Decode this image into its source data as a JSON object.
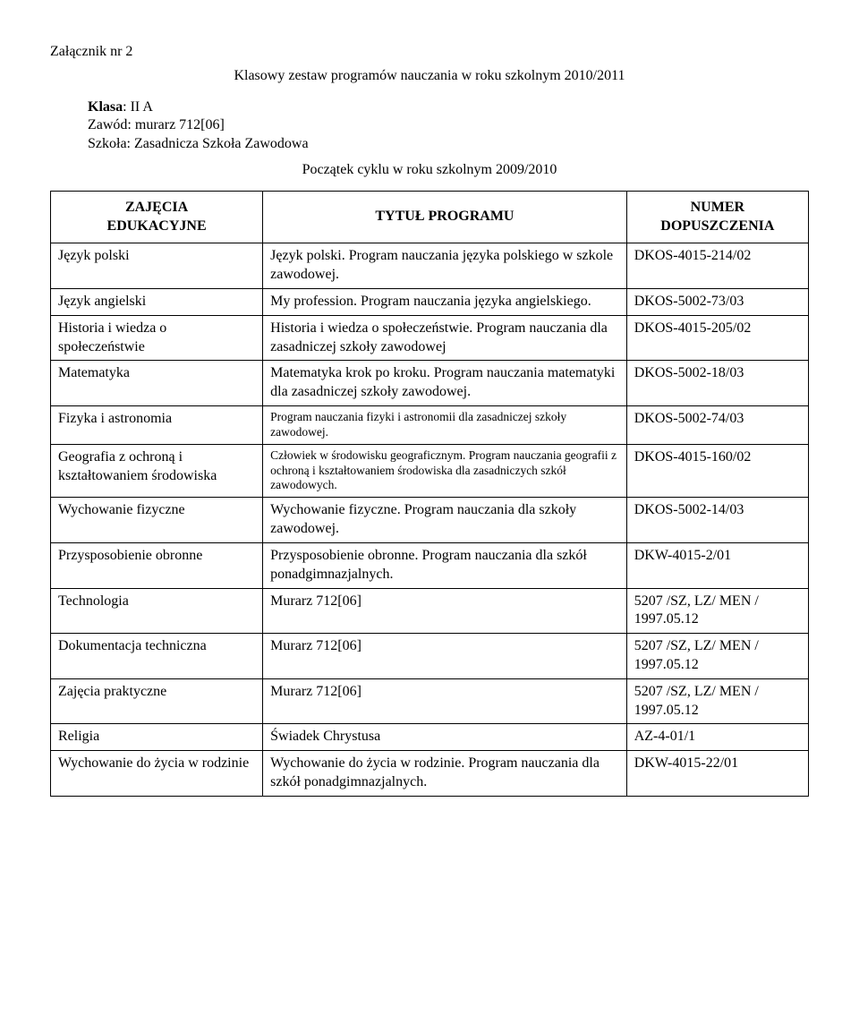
{
  "header": {
    "attachment": "Załącznik nr 2",
    "title": "Klasowy zestaw programów nauczania w roku szkolnym 2010/2011",
    "class_line": "Klasa: II A",
    "profession_line": "Zawód: murarz 712[06]",
    "school_line": "Szkoła: Zasadnicza Szkoła Zawodowa",
    "cycle_start": "Początek cyklu w roku szkolnym 2009/2010"
  },
  "table": {
    "columns": {
      "subject_l1": "ZAJĘCIA",
      "subject_l2": "EDUKACYJNE",
      "program": "TYTUŁ PROGRAMU",
      "number_l1": "NUMER",
      "number_l2": "DOPUSZCZENIA"
    },
    "rows": [
      {
        "subject": "Język polski",
        "program": "Język polski. Program nauczania języka polskiego w szkole zawodowej.",
        "number": "DKOS-4015-214/02",
        "small": false
      },
      {
        "subject": "Język angielski",
        "program": "My profession. Program nauczania języka angielskiego.",
        "number": "DKOS-5002-73/03",
        "small": false
      },
      {
        "subject": "Historia i wiedza o społeczeństwie",
        "program": "Historia i wiedza o społeczeństwie. Program nauczania dla zasadniczej szkoły zawodowej",
        "number": "DKOS-4015-205/02",
        "small": false
      },
      {
        "subject": "Matematyka",
        "program": "Matematyka krok po kroku. Program nauczania matematyki dla zasadniczej szkoły zawodowej.",
        "number": "DKOS-5002-18/03",
        "small": false
      },
      {
        "subject": "Fizyka i astronomia",
        "program": "Program nauczania fizyki i astronomii dla zasadniczej szkoły zawodowej.",
        "number": "DKOS-5002-74/03",
        "small": true
      },
      {
        "subject": "Geografia z ochroną i kształtowaniem środowiska",
        "program": "Człowiek w środowisku geograficznym. Program nauczania geografii z ochroną i kształtowaniem środowiska dla zasadniczych szkół zawodowych.",
        "number": "DKOS-4015-160/02",
        "small": true
      },
      {
        "subject": "Wychowanie fizyczne",
        "program": "Wychowanie fizyczne. Program nauczania dla szkoły zawodowej.",
        "number": "DKOS-5002-14/03",
        "small": false
      },
      {
        "subject": "Przysposobienie obronne",
        "program": "Przysposobienie obronne. Program nauczania dla szkół ponadgimnazjalnych.",
        "number": "DKW-4015-2/01",
        "small": false
      },
      {
        "subject": "Technologia",
        "program": "Murarz 712[06]",
        "number": "5207 /SZ, LZ/ MEN / 1997.05.12",
        "small": false
      },
      {
        "subject": "Dokumentacja techniczna",
        "program": "Murarz 712[06]",
        "number": "5207 /SZ, LZ/ MEN / 1997.05.12",
        "small": false
      },
      {
        "subject": "Zajęcia praktyczne",
        "program": "Murarz 712[06]",
        "number": "5207 /SZ, LZ/ MEN / 1997.05.12",
        "small": false
      },
      {
        "subject": "Religia",
        "program": "Świadek Chrystusa",
        "number": "AZ-4-01/1",
        "small": false
      },
      {
        "subject": "Wychowanie do życia w rodzinie",
        "program": "Wychowanie do życia w rodzinie. Program nauczania dla szkół ponadgimnazjalnych.",
        "number": "DKW-4015-22/01",
        "small": false
      }
    ]
  }
}
